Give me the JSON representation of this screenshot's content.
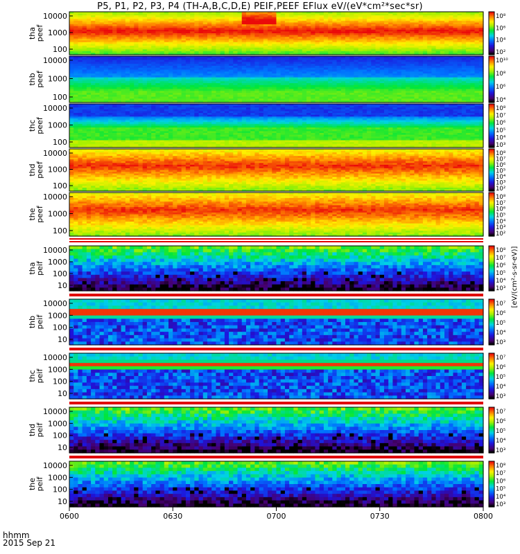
{
  "title": "P5, P1, P2, P3, P4 (TH-A,B,C,D,E) PEIF,PEEF EFlux eV/(eV*cm²*sec*sr)",
  "footer": {
    "time_label": "hhmm",
    "date_label": "2015 Sep 21"
  },
  "chart_data": {
    "type": "heatmap",
    "x_ticks": [
      "0600",
      "0630",
      "0700",
      "0730",
      "0800"
    ],
    "x_range": [
      "0600",
      "0800"
    ],
    "y_scale": "log",
    "colorbar_unit_text": "[eV/(cm²-s-sr-eV)]",
    "panels": [
      {
        "probe": "tha",
        "species": "peef",
        "ylabel": [
          "tha",
          "peef"
        ],
        "y_ticks": [
          "10000",
          "1000",
          "100"
        ],
        "colorbar_ticks": [
          "10⁸",
          "10⁶",
          "10⁴",
          "10²"
        ],
        "electron": true
      },
      {
        "probe": "thb",
        "species": "peef",
        "ylabel": [
          "thb",
          "peef"
        ],
        "y_ticks": [
          "10000",
          "1000",
          "100"
        ],
        "colorbar_ticks": [
          "10¹⁰",
          "10⁸",
          "10⁶",
          "10⁴"
        ],
        "electron": true
      },
      {
        "probe": "thc",
        "species": "peef",
        "ylabel": [
          "thc",
          "peef"
        ],
        "y_ticks": [
          "10000",
          "1000",
          "100"
        ],
        "colorbar_ticks": [
          "10⁸",
          "10⁷",
          "10⁶",
          "10⁵",
          "10⁴",
          "10³"
        ],
        "electron": true
      },
      {
        "probe": "thd",
        "species": "peef",
        "ylabel": [
          "thd",
          "peef"
        ],
        "y_ticks": [
          "10000",
          "1000",
          "100"
        ],
        "colorbar_ticks": [
          "10⁸",
          "10⁷",
          "10⁶",
          "10⁵",
          "10⁴",
          "10³",
          "10²"
        ],
        "electron": true
      },
      {
        "probe": "the",
        "species": "peef",
        "ylabel": [
          "the",
          "peef"
        ],
        "y_ticks": [
          "10000",
          "1000",
          "100"
        ],
        "colorbar_ticks": [
          "10⁸",
          "10⁷",
          "10⁶",
          "10⁵",
          "10⁴",
          "10³",
          "10²"
        ],
        "electron": true
      },
      {
        "probe": "tha",
        "species": "peif",
        "ylabel": [
          "tha",
          "peif"
        ],
        "y_ticks": [
          "10000",
          "1000",
          "100",
          "10"
        ],
        "colorbar_ticks": [
          "10⁸",
          "10⁷",
          "10⁶",
          "10⁵",
          "10⁴",
          "10³"
        ],
        "electron": false
      },
      {
        "probe": "thb",
        "species": "peif",
        "ylabel": [
          "thb",
          "peif"
        ],
        "y_ticks": [
          "10000",
          "1000",
          "100",
          "10"
        ],
        "colorbar_ticks": [
          "10⁷",
          "10⁶",
          "10⁵",
          "10⁴",
          "10³"
        ],
        "electron": false
      },
      {
        "probe": "thc",
        "species": "peif",
        "ylabel": [
          "thc",
          "peif"
        ],
        "y_ticks": [
          "10000",
          "1000",
          "100",
          "10"
        ],
        "colorbar_ticks": [
          "10⁷",
          "10⁶",
          "10⁵",
          "10⁴",
          "10³"
        ],
        "electron": false
      },
      {
        "probe": "thd",
        "species": "peif",
        "ylabel": [
          "thd",
          "peif"
        ],
        "y_ticks": [
          "10000",
          "1000",
          "100",
          "10"
        ],
        "colorbar_ticks": [
          "10⁷",
          "10⁶",
          "10⁵",
          "10⁴",
          "10³"
        ],
        "electron": false
      },
      {
        "probe": "the",
        "species": "peif",
        "ylabel": [
          "the",
          "peif"
        ],
        "y_ticks": [
          "10000",
          "1000",
          "100",
          "10"
        ],
        "colorbar_ticks": [
          "10⁸",
          "10⁷",
          "10⁶",
          "10⁵",
          "10⁴",
          "10³"
        ],
        "electron": false
      }
    ]
  }
}
